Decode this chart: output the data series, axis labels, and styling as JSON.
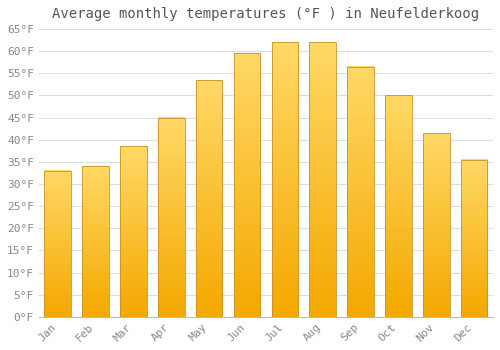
{
  "title": "Average monthly temperatures (°F ) in Neufelderkoog",
  "months": [
    "Jan",
    "Feb",
    "Mar",
    "Apr",
    "May",
    "Jun",
    "Jul",
    "Aug",
    "Sep",
    "Oct",
    "Nov",
    "Dec"
  ],
  "values": [
    33,
    34,
    38.5,
    45,
    53.5,
    59.5,
    62,
    62,
    56.5,
    50,
    41.5,
    35.5
  ],
  "bar_color_bottom": "#F5A800",
  "bar_color_top": "#FFD966",
  "bar_edge_color": "#C8922A",
  "ylim": [
    0,
    65
  ],
  "yticks": [
    0,
    5,
    10,
    15,
    20,
    25,
    30,
    35,
    40,
    45,
    50,
    55,
    60,
    65
  ],
  "ytick_labels": [
    "0°F",
    "5°F",
    "10°F",
    "15°F",
    "20°F",
    "25°F",
    "30°F",
    "35°F",
    "40°F",
    "45°F",
    "50°F",
    "55°F",
    "60°F",
    "65°F"
  ],
  "background_color": "#ffffff",
  "grid_color": "#dddddd",
  "title_fontsize": 10,
  "tick_fontsize": 8,
  "bar_width": 0.7
}
